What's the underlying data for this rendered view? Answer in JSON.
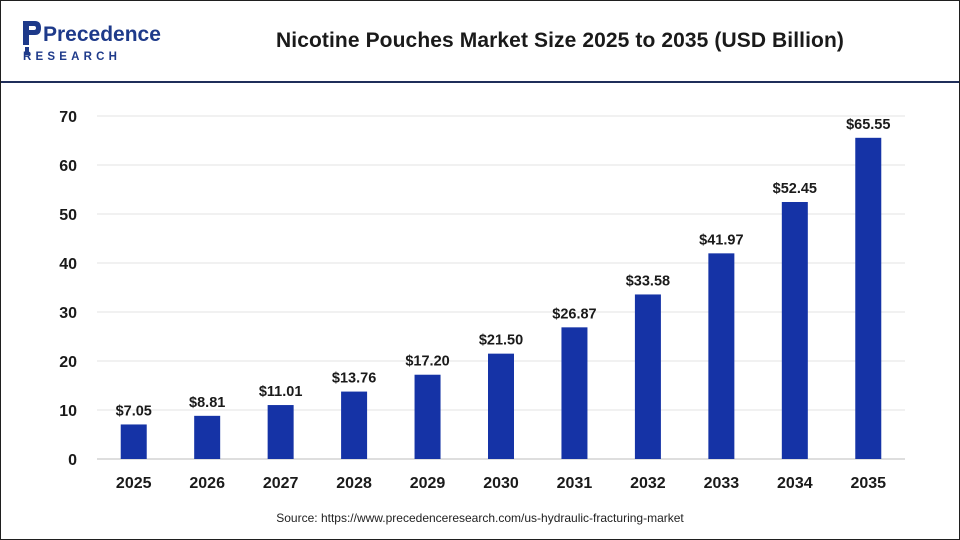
{
  "brand": {
    "logo_top": "Precedence",
    "logo_bottom": "RESEARCH",
    "logo_color": "#1e3a8a"
  },
  "footer": {
    "source": "Source: https://www.precedenceresearch.com/us-hydraulic-fracturing-market"
  },
  "chart_data": {
    "type": "bar",
    "title": "Nicotine Pouches Market Size 2025 to 2035 (USD Billion)",
    "xlabel": "",
    "ylabel": "",
    "categories": [
      "2025",
      "2026",
      "2027",
      "2028",
      "2029",
      "2030",
      "2031",
      "2032",
      "2033",
      "2034",
      "2035"
    ],
    "values": [
      7.05,
      8.81,
      11.01,
      13.76,
      17.2,
      21.5,
      26.87,
      33.58,
      41.97,
      52.45,
      65.55
    ],
    "data_labels": [
      "$7.05",
      "$8.81",
      "$11.01",
      "$13.76",
      "$17.20",
      "$21.50",
      "$26.87",
      "$33.58",
      "$41.97",
      "$52.45",
      "$65.55"
    ],
    "ylim": [
      0,
      70
    ],
    "yticks": [
      0,
      10,
      20,
      30,
      40,
      50,
      60,
      70
    ],
    "grid": true,
    "bar_color": "#1533a6",
    "grid_color": "#e3e3e3",
    "axis_color": "#bdbdbd",
    "legend": "none"
  }
}
